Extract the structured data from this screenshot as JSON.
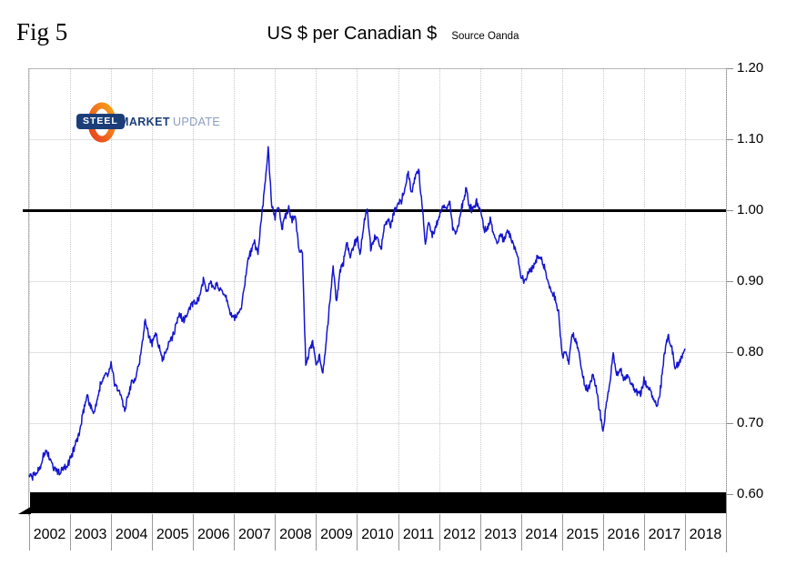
{
  "figure_label": "Fig 5",
  "title": "US $ per Canadian $",
  "source": "Source Oanda",
  "logo": {
    "word1": "STEEL",
    "word2": "MARKET",
    "word3": "UPDATE",
    "orange": "#f26a21",
    "orange_dark": "#e8401f",
    "orange_light": "#f9a21b",
    "navy": "#1c3e78",
    "light_blue": "#8a9cc0"
  },
  "chart_data": {
    "type": "line",
    "title": "US $ per Canadian $",
    "xlabel": "",
    "ylabel": "",
    "x_tick_labels": [
      "2002",
      "2003",
      "2004",
      "2005",
      "2006",
      "2007",
      "2008",
      "2009",
      "2010",
      "2011",
      "2012",
      "2013",
      "2014",
      "2015",
      "2016",
      "2017",
      "2018"
    ],
    "y_ticks": [
      1.2,
      1.1,
      1.0,
      0.9,
      0.8,
      0.7,
      0.6
    ],
    "y_tick_labels": [
      "1.20",
      "1.10",
      "1.00",
      "0.90",
      "0.80",
      "0.70",
      "0.60"
    ],
    "ylim": [
      0.6,
      1.2
    ],
    "grid": "light gray; dotted vertical year lines",
    "legend": "none",
    "reference_line_value": 1.0,
    "line_color": "#1414cf",
    "black_bar_annotation": "solid black horizontal bar across chart bottom just below 0.60",
    "series": [
      {
        "name": "USD per CAD exchange rate",
        "interval": "monthly",
        "start": "2002-01",
        "end": "2018-01",
        "values": [
          0.627,
          0.625,
          0.63,
          0.637,
          0.65,
          0.662,
          0.65,
          0.638,
          0.634,
          0.63,
          0.636,
          0.637,
          0.65,
          0.662,
          0.676,
          0.692,
          0.72,
          0.74,
          0.722,
          0.715,
          0.733,
          0.756,
          0.768,
          0.77,
          0.785,
          0.755,
          0.748,
          0.736,
          0.72,
          0.738,
          0.758,
          0.765,
          0.78,
          0.805,
          0.848,
          0.825,
          0.812,
          0.83,
          0.808,
          0.792,
          0.8,
          0.812,
          0.822,
          0.838,
          0.856,
          0.845,
          0.85,
          0.862,
          0.87,
          0.868,
          0.88,
          0.902,
          0.888,
          0.897,
          0.89,
          0.898,
          0.888,
          0.878,
          0.872,
          0.852,
          0.848,
          0.853,
          0.86,
          0.893,
          0.928,
          0.943,
          0.953,
          0.94,
          0.985,
          1.035,
          1.088,
          1.005,
          0.99,
          1.005,
          0.975,
          0.99,
          1.005,
          0.985,
          0.99,
          0.945,
          0.94,
          0.78,
          0.8,
          0.815,
          0.785,
          0.792,
          0.772,
          0.815,
          0.87,
          0.92,
          0.87,
          0.915,
          0.925,
          0.955,
          0.935,
          0.95,
          0.96,
          0.94,
          0.985,
          1.0,
          0.945,
          0.96,
          0.965,
          0.945,
          0.975,
          0.985,
          0.98,
          1.0,
          1.01,
          1.015,
          1.03,
          1.055,
          1.022,
          1.048,
          1.058,
          1.01,
          0.955,
          0.985,
          0.965,
          0.978,
          0.99,
          1.005,
          1.002,
          1.015,
          0.975,
          0.965,
          0.99,
          1.012,
          1.03,
          1.003,
          1.0,
          1.01,
          1.005,
          0.975,
          0.972,
          0.988,
          0.968,
          0.952,
          0.965,
          0.958,
          0.972,
          0.962,
          0.948,
          0.938,
          0.905,
          0.9,
          0.908,
          0.915,
          0.922,
          0.937,
          0.932,
          0.915,
          0.895,
          0.885,
          0.875,
          0.855,
          0.795,
          0.802,
          0.785,
          0.83,
          0.815,
          0.8,
          0.765,
          0.752,
          0.748,
          0.77,
          0.748,
          0.72,
          0.688,
          0.725,
          0.755,
          0.798,
          0.77,
          0.778,
          0.762,
          0.765,
          0.758,
          0.748,
          0.742,
          0.74,
          0.762,
          0.752,
          0.745,
          0.73,
          0.726,
          0.755,
          0.8,
          0.822,
          0.81,
          0.778,
          0.782,
          0.795,
          0.805
        ]
      }
    ]
  }
}
